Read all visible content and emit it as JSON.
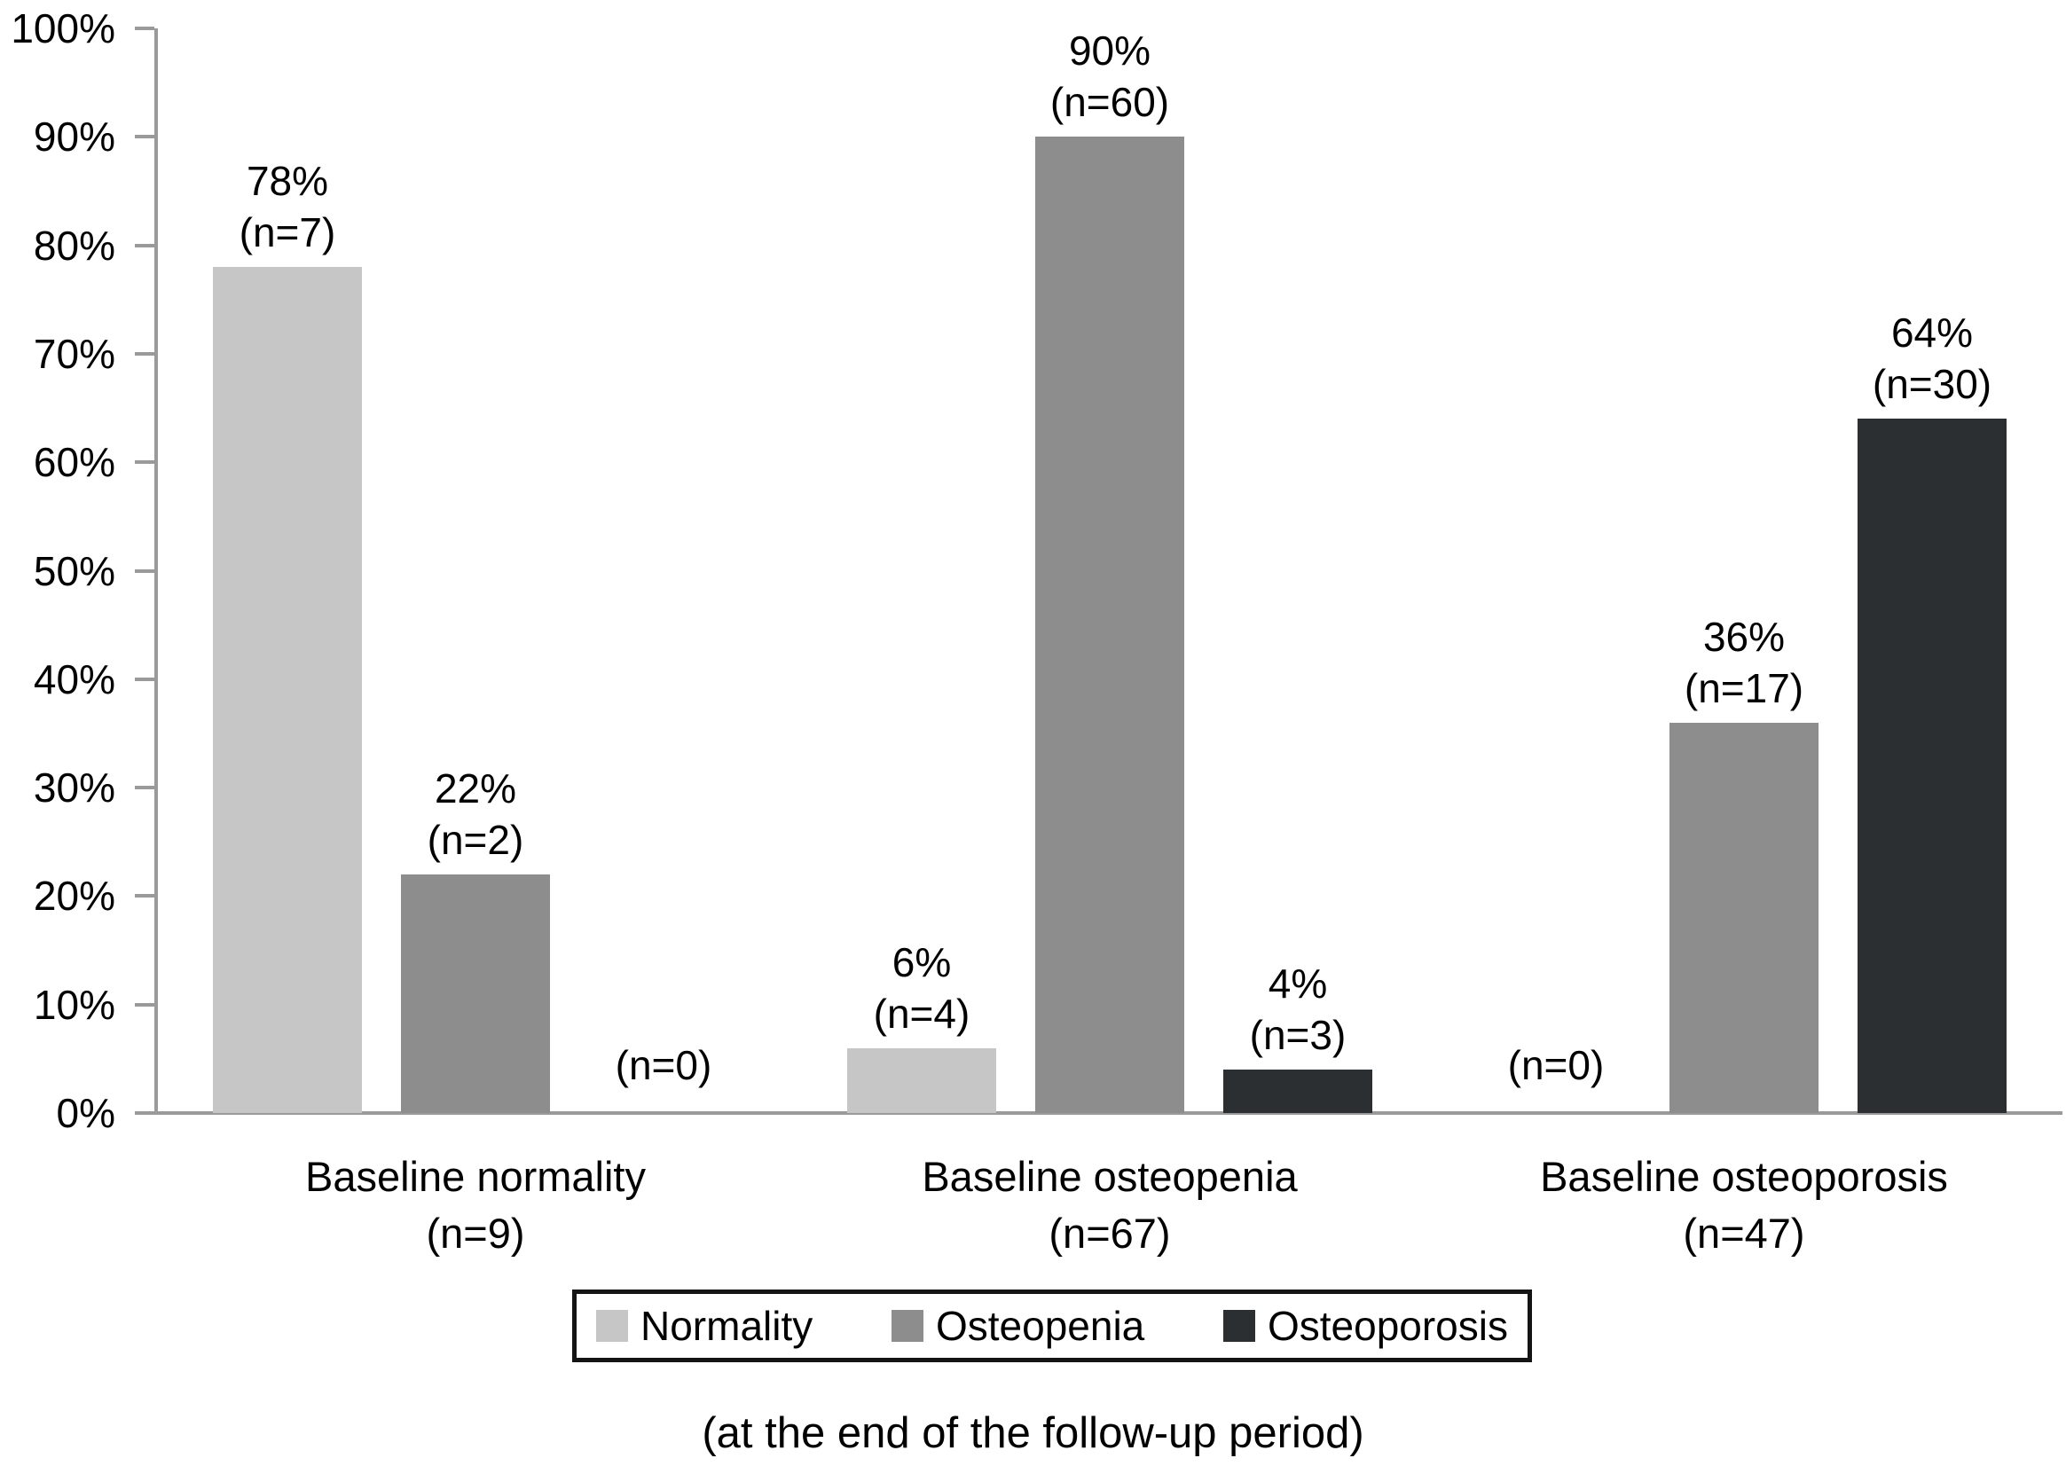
{
  "figure": {
    "background": "#ffffff",
    "axis_color": "#9a9a9a",
    "text_color": "#000000",
    "legend_border_color": "#141414"
  },
  "chart_data": {
    "type": "bar",
    "title": "",
    "caption": "(at the end of the follow-up period)",
    "categories": [
      "Baseline normality",
      "Baseline osteopenia",
      "Baseline osteoporosis"
    ],
    "category_counts": [
      "(n=9)",
      "(n=67)",
      "(n=47)"
    ],
    "series": [
      {
        "name": "Normality",
        "color": "#c6c6c6",
        "values": [
          78,
          6,
          0
        ],
        "counts": [
          7,
          4,
          0
        ]
      },
      {
        "name": "Osteopenia",
        "color": "#8d8d8d",
        "values": [
          22,
          90,
          36
        ],
        "counts": [
          2,
          60,
          17
        ]
      },
      {
        "name": "Osteoporosis",
        "color": "#2c2f31",
        "values": [
          0,
          4,
          64
        ],
        "counts": [
          0,
          3,
          30
        ]
      }
    ],
    "bar_label_format": "{value}%\n(n={count})",
    "zero_label_format": "(n={count})",
    "xlabel": "",
    "ylabel": "",
    "ylim": [
      0,
      100
    ],
    "ytick_step": 10,
    "ytick_labels": [
      "0%",
      "10%",
      "20%",
      "30%",
      "40%",
      "50%",
      "60%",
      "70%",
      "80%",
      "90%",
      "100%"
    ],
    "grid": false,
    "legend_position": "bottom"
  }
}
